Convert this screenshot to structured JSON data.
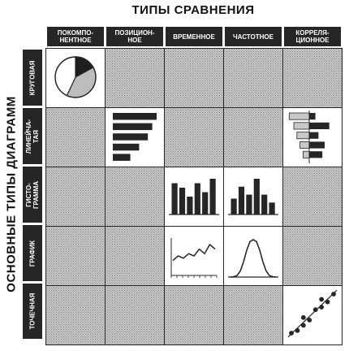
{
  "title_top": "ТИПЫ СРАВНЕНИЯ",
  "title_left": "ОСНОВНЫЕ ТИПЫ ДИАГРАММ",
  "columns": [
    {
      "id": "component",
      "lines": [
        "ПОКОМПО-",
        "НЕНТНОЕ"
      ]
    },
    {
      "id": "item",
      "lines": [
        "ПОЗИЦИОН-",
        "НОЕ"
      ]
    },
    {
      "id": "time",
      "lines": [
        "ВРЕМЕННОЕ"
      ]
    },
    {
      "id": "frequency",
      "lines": [
        "ЧАСТОТНОЕ"
      ]
    },
    {
      "id": "correlation",
      "lines": [
        "КОРРЕЛЯ-",
        "ЦИОННОЕ"
      ]
    }
  ],
  "rows": [
    {
      "id": "pie",
      "lines": [
        "КРУГОВАЯ"
      ]
    },
    {
      "id": "bar",
      "lines": [
        "ЛИНЕЙЧА-",
        "ТАЯ"
      ]
    },
    {
      "id": "histogram",
      "lines": [
        "ГИСТО-",
        "ГРАММА"
      ]
    },
    {
      "id": "line",
      "lines": [
        "ГРАФИК"
      ]
    },
    {
      "id": "dot",
      "lines": [
        "ТОЧЕЧНАЯ"
      ]
    }
  ],
  "cells": {
    "pie": {
      "row": 0,
      "col": 0
    },
    "bar": {
      "row": 1,
      "col": 1
    },
    "correlation_bar": {
      "row": 1,
      "col": 4
    },
    "time_histogram": {
      "row": 2,
      "col": 2
    },
    "frequency_histogram": {
      "row": 2,
      "col": 3
    },
    "time_line": {
      "row": 3,
      "col": 2
    },
    "frequency_curve": {
      "row": 3,
      "col": 3
    },
    "scatter": {
      "row": 4,
      "col": 4
    }
  },
  "chart_data": [
    {
      "type": "pie",
      "values": [
        17,
        40,
        43
      ],
      "colors": [
        "#1e1e1e",
        "#bdbdbd",
        "#ffffff"
      ]
    },
    {
      "type": "bar",
      "orientation": "horizontal",
      "values": [
        10,
        9,
        8,
        6,
        4
      ]
    },
    {
      "type": "bar",
      "orientation": "horizontal",
      "diverging": true,
      "left": [
        2.6,
        2.0,
        1.6,
        1.2,
        0.8
      ],
      "right": [
        0.8,
        2.6,
        1.2,
        2.0,
        1.7
      ]
    },
    {
      "type": "bar",
      "values": [
        7,
        6,
        4,
        7,
        5,
        8
      ]
    },
    {
      "type": "bar",
      "values": [
        4,
        7,
        5,
        9,
        5,
        3
      ]
    },
    {
      "type": "line",
      "values": [
        3,
        5,
        4,
        6,
        5,
        8,
        6,
        10,
        8
      ]
    },
    {
      "type": "line",
      "shape": "bell",
      "values": [
        0,
        1,
        4,
        16,
        40,
        72,
        95,
        100,
        95,
        72,
        40,
        16,
        4,
        1,
        0
      ]
    },
    {
      "type": "scatter",
      "points": [
        [
          1,
          9
        ],
        [
          2,
          10
        ],
        [
          3,
          12
        ],
        [
          3,
          15
        ],
        [
          4,
          14
        ],
        [
          5,
          18
        ],
        [
          6,
          19
        ],
        [
          6,
          22
        ],
        [
          7,
          21
        ],
        [
          8,
          24
        ]
      ]
    }
  ],
  "colors": {
    "ink": "#262626",
    "shade": "#b8b8b8",
    "panel": "#ffffff"
  }
}
